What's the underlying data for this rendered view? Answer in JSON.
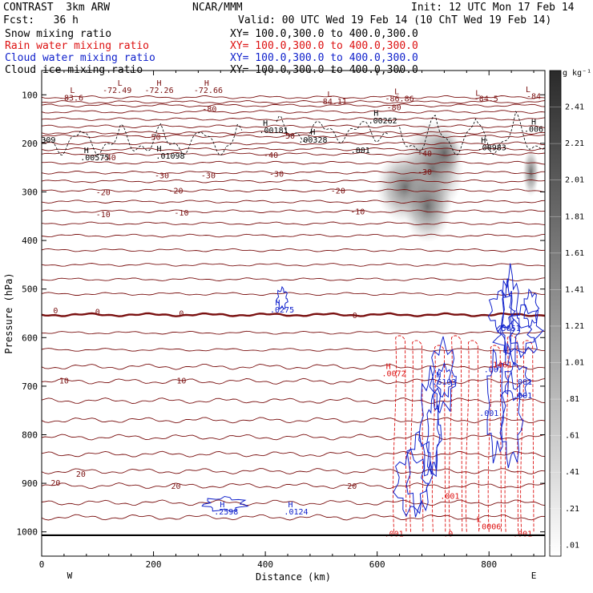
{
  "header": {
    "model": "CONTRAST  3km ARW",
    "center": "NCAR/MMM",
    "init": "Init: 12 UTC Mon 17 Feb 14",
    "fcst": "Fcst:   36 h",
    "valid": "Valid: 00 UTC Wed 19 Feb 14 (10 ChT Wed 19 Feb 14)"
  },
  "fields": [
    {
      "name": "Snow mixing ratio",
      "xy": "XY= 100.0,300.0 to 400.0,300.0",
      "color": "#000000"
    },
    {
      "name": "Rain water mixing ratio",
      "xy": "XY= 100.0,300.0 to 400.0,300.0",
      "color": "#dd1111"
    },
    {
      "name": "Cloud water mixing ratio",
      "xy": "XY= 100.0,300.0 to 400.0,300.0",
      "color": "#1122cc"
    },
    {
      "name": "Cloud ice mixing ratio",
      "xy": "XY= 100.0,300.0 to 400.0,300.0",
      "color": "#000000"
    }
  ],
  "colors": {
    "temperature": "#7a1010",
    "rain": "#dd1111",
    "cloud_water": "#1122cc",
    "cloud_ice": "#000000",
    "snow_shade": "#555555"
  },
  "chart_data": {
    "type": "contour",
    "xlabel": "Distance (km)",
    "ylabel": "Pressure (hPa)",
    "xlim": [
      0,
      900
    ],
    "ylim": [
      1050,
      50
    ],
    "x_ticks": [
      0,
      200,
      400,
      600,
      800
    ],
    "y_ticks": [
      100,
      200,
      300,
      400,
      500,
      600,
      700,
      800,
      900,
      1000
    ],
    "x_end_labels": {
      "left": "W",
      "right": "E"
    },
    "colorbar": {
      "unit": "g kg⁻¹",
      "ticks": [
        "2.41",
        "2.21",
        "2.01",
        "1.81",
        "1.61",
        "1.41",
        "1.21",
        "1.01",
        ".81",
        ".61",
        ".41",
        ".21",
        ".01"
      ]
    },
    "temperature_contours": [
      {
        "label": "-80",
        "p": 122
      },
      {
        "label": "-50",
        "p": 185
      },
      {
        "label": "-40",
        "p": 222
      },
      {
        "label": "-30",
        "p": 260
      },
      {
        "label": "-20",
        "p": 297
      },
      {
        "label": "-10",
        "p": 340
      },
      {
        "label": "0",
        "p": 553
      },
      {
        "label": "10",
        "p": 690
      },
      {
        "label": "20",
        "p": 905
      }
    ],
    "contour_labels": [
      {
        "text": "-83.6",
        "x": 53,
        "p": 105,
        "color": "temperature"
      },
      {
        "text": "-72.49",
        "x": 135,
        "p": 90,
        "color": "temperature"
      },
      {
        "text": "-72.26",
        "x": 210,
        "p": 90,
        "color": "temperature"
      },
      {
        "text": "-72.66",
        "x": 298,
        "p": 90,
        "color": "temperature"
      },
      {
        "text": "-84.11",
        "x": 520,
        "p": 113,
        "color": "temperature"
      },
      {
        "text": "-86.86",
        "x": 640,
        "p": 107,
        "color": "temperature"
      },
      {
        "text": "-84.5",
        "x": 795,
        "p": 107,
        "color": "temperature"
      },
      {
        "text": "-84",
        "x": 880,
        "p": 102,
        "color": "temperature"
      },
      {
        "text": "-80",
        "x": 300,
        "p": 128,
        "color": "temperature"
      },
      {
        "text": "-80",
        "x": 630,
        "p": 125,
        "color": "temperature"
      },
      {
        "text": "-50",
        "x": 200,
        "p": 186,
        "color": "temperature"
      },
      {
        "text": "-50",
        "x": 440,
        "p": 184,
        "color": "temperature"
      },
      {
        "text": "-40",
        "x": 120,
        "p": 228,
        "color": "temperature"
      },
      {
        "text": "-40",
        "x": 410,
        "p": 223,
        "color": "temperature"
      },
      {
        "text": "-40",
        "x": 685,
        "p": 220,
        "color": "temperature"
      },
      {
        "text": "-30",
        "x": 215,
        "p": 265,
        "color": "temperature"
      },
      {
        "text": "-30",
        "x": 298,
        "p": 265,
        "color": "temperature"
      },
      {
        "text": "-30",
        "x": 420,
        "p": 262,
        "color": "temperature"
      },
      {
        "text": "-30",
        "x": 685,
        "p": 258,
        "color": "temperature"
      },
      {
        "text": "-20",
        "x": 110,
        "p": 300,
        "color": "temperature"
      },
      {
        "text": "-20",
        "x": 240,
        "p": 297,
        "color": "temperature"
      },
      {
        "text": "-20",
        "x": 530,
        "p": 297,
        "color": "temperature"
      },
      {
        "text": "-10",
        "x": 110,
        "p": 345,
        "color": "temperature"
      },
      {
        "text": "-10",
        "x": 250,
        "p": 342,
        "color": "temperature"
      },
      {
        "text": "-10",
        "x": 565,
        "p": 340,
        "color": "temperature"
      },
      {
        "text": "0",
        "x": 25,
        "p": 543,
        "color": "temperature"
      },
      {
        "text": "0",
        "x": 100,
        "p": 546,
        "color": "temperature"
      },
      {
        "text": "0",
        "x": 250,
        "p": 549,
        "color": "temperature"
      },
      {
        "text": "0",
        "x": 560,
        "p": 553,
        "color": "temperature"
      },
      {
        "text": "10",
        "x": 40,
        "p": 688,
        "color": "temperature"
      },
      {
        "text": "10",
        "x": 250,
        "p": 688,
        "color": "temperature"
      },
      {
        "text": "20",
        "x": 25,
        "p": 898,
        "color": "temperature"
      },
      {
        "text": "20",
        "x": 70,
        "p": 880,
        "color": "temperature"
      },
      {
        "text": "20",
        "x": 240,
        "p": 905,
        "color": "temperature"
      },
      {
        "text": "20",
        "x": 555,
        "p": 905,
        "color": "temperature"
      },
      {
        "text": ".00575",
        "x": 95,
        "p": 228,
        "color": "cloud_ice"
      },
      {
        "text": ".01098",
        "x": 230,
        "p": 225,
        "color": "cloud_ice"
      },
      {
        "text": ".00181",
        "x": 415,
        "p": 172,
        "color": "cloud_ice"
      },
      {
        "text": ".00328",
        "x": 485,
        "p": 192,
        "color": "cloud_ice"
      },
      {
        "text": ".00262",
        "x": 610,
        "p": 152,
        "color": "cloud_ice"
      },
      {
        "text": ".001",
        "x": 570,
        "p": 213,
        "color": "cloud_ice"
      },
      {
        "text": ".00983",
        "x": 805,
        "p": 208,
        "color": "cloud_ice"
      },
      {
        "text": ".006",
        "x": 880,
        "p": 170,
        "color": "cloud_ice"
      },
      {
        "text": "309",
        "x": 12,
        "p": 192,
        "color": "cloud_ice"
      },
      {
        "text": ".0275",
        "x": 430,
        "p": 542,
        "color": "cloud_water"
      },
      {
        "text": ".2598",
        "x": 330,
        "p": 958,
        "color": "cloud_water"
      },
      {
        "text": ".0124",
        "x": 455,
        "p": 958,
        "color": "cloud_water"
      },
      {
        "text": ".6103",
        "x": 720,
        "p": 690,
        "color": "cloud_water"
      },
      {
        "text": ".001",
        "x": 860,
        "p": 690,
        "color": "cloud_water"
      },
      {
        "text": ".001",
        "x": 860,
        "p": 718,
        "color": "cloud_water"
      },
      {
        "text": ".001",
        "x": 800,
        "p": 755,
        "color": "cloud_water"
      },
      {
        "text": ".001",
        "x": 808,
        "p": 665,
        "color": "cloud_water"
      },
      {
        "text": ".5051",
        "x": 835,
        "p": 580,
        "color": "cloud_water"
      },
      {
        "text": ".0072",
        "x": 630,
        "p": 673,
        "color": "rain"
      },
      {
        "text": ".1461",
        "x": 820,
        "p": 655,
        "color": "rain"
      },
      {
        "text": ".001",
        "x": 730,
        "p": 925,
        "color": "rain"
      },
      {
        "text": ".001",
        "x": 630,
        "p": 1003,
        "color": "rain"
      },
      {
        "text": ".0006",
        "x": 800,
        "p": 988,
        "color": "rain"
      },
      {
        "text": ".0",
        "x": 727,
        "p": 1003,
        "color": "rain"
      },
      {
        "text": ".001",
        "x": 860,
        "p": 1003,
        "color": "rain"
      }
    ],
    "extrema_markers": [
      {
        "text": "L",
        "x": 55,
        "p": 90,
        "color": "temperature"
      },
      {
        "text": "L",
        "x": 140,
        "p": 75,
        "color": "temperature"
      },
      {
        "text": "H",
        "x": 210,
        "p": 75,
        "color": "temperature"
      },
      {
        "text": "H",
        "x": 295,
        "p": 75,
        "color": "temperature"
      },
      {
        "text": "L",
        "x": 515,
        "p": 98,
        "color": "temperature"
      },
      {
        "text": "L",
        "x": 635,
        "p": 92,
        "color": "temperature"
      },
      {
        "text": "L",
        "x": 780,
        "p": 95,
        "color": "temperature"
      },
      {
        "text": "L",
        "x": 870,
        "p": 88,
        "color": "temperature"
      },
      {
        "text": "H",
        "x": 80,
        "p": 213,
        "color": "cloud_ice"
      },
      {
        "text": "H",
        "x": 210,
        "p": 210,
        "color": "cloud_ice"
      },
      {
        "text": "H",
        "x": 400,
        "p": 157,
        "color": "cloud_ice"
      },
      {
        "text": "H",
        "x": 485,
        "p": 175,
        "color": "cloud_ice"
      },
      {
        "text": "H",
        "x": 598,
        "p": 137,
        "color": "cloud_ice"
      },
      {
        "text": "H",
        "x": 790,
        "p": 193,
        "color": "cloud_ice"
      },
      {
        "text": "H",
        "x": 880,
        "p": 155,
        "color": "cloud_ice"
      },
      {
        "text": "H",
        "x": 422,
        "p": 527,
        "color": "cloud_water"
      },
      {
        "text": "H",
        "x": 323,
        "p": 943,
        "color": "cloud_water"
      },
      {
        "text": "H",
        "x": 445,
        "p": 943,
        "color": "cloud_water"
      },
      {
        "text": "H",
        "x": 710,
        "p": 675,
        "color": "cloud_water"
      },
      {
        "text": "H",
        "x": 620,
        "p": 658,
        "color": "rain"
      },
      {
        "text": "L",
        "x": 782,
        "p": 973,
        "color": "rain"
      }
    ]
  }
}
